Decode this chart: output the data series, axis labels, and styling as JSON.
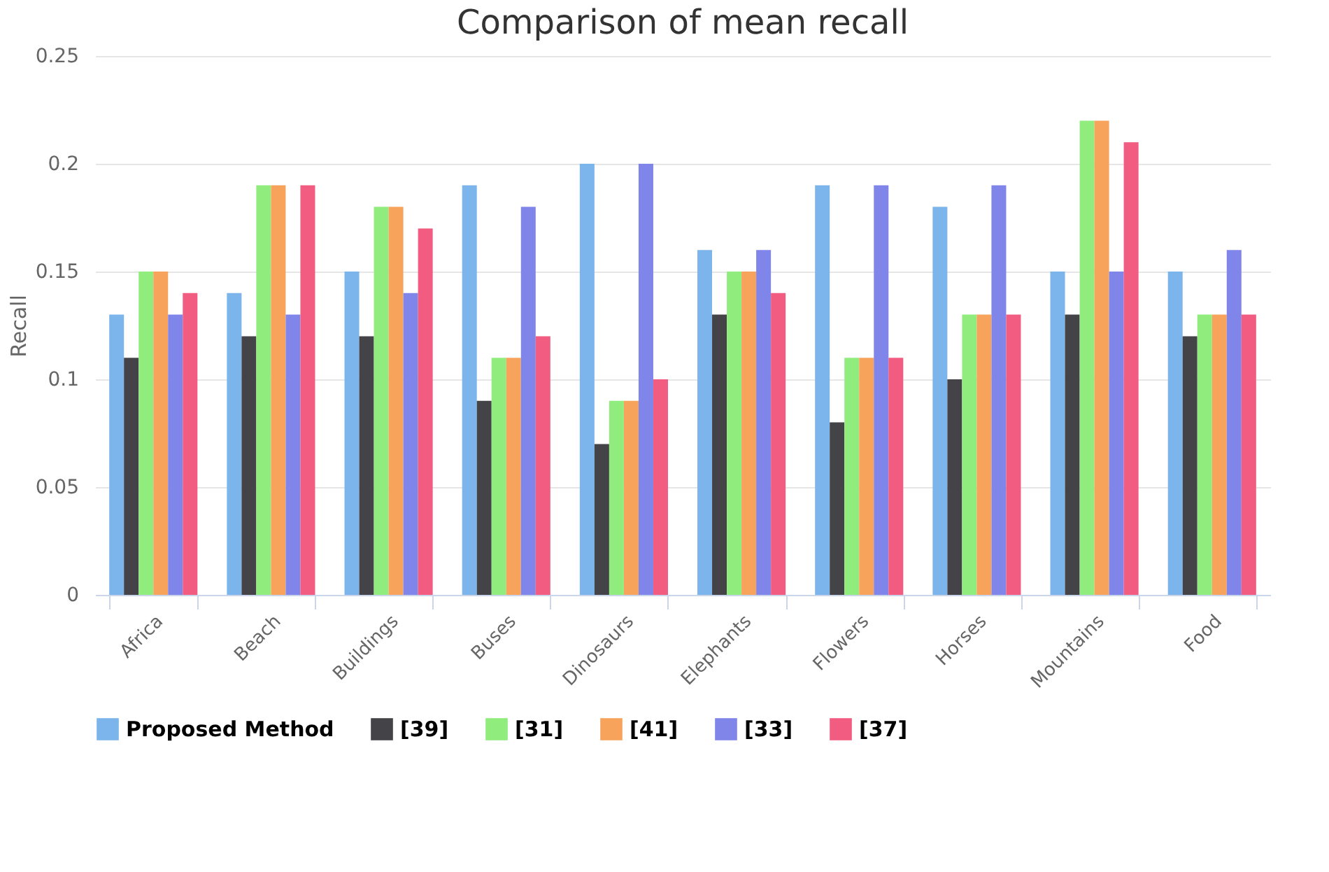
{
  "chart_data": {
    "type": "bar",
    "title": "Comparison of mean recall",
    "ylabel": "Recall",
    "categories": [
      "Africa",
      "Beach",
      "Buildings",
      "Buses",
      "Dinosaurs",
      "Elephants",
      "Flowers",
      "Horses",
      "Mountains",
      "Food"
    ],
    "series": [
      {
        "name": "Proposed Method",
        "color": "#7cb5ec",
        "values": [
          0.13,
          0.14,
          0.15,
          0.19,
          0.2,
          0.16,
          0.19,
          0.18,
          0.15,
          0.15
        ]
      },
      {
        "name": "[39]",
        "color": "#434348",
        "values": [
          0.11,
          0.12,
          0.12,
          0.09,
          0.07,
          0.13,
          0.08,
          0.1,
          0.13,
          0.12
        ]
      },
      {
        "name": "[31]",
        "color": "#90ed7d",
        "values": [
          0.15,
          0.19,
          0.18,
          0.11,
          0.09,
          0.15,
          0.11,
          0.13,
          0.22,
          0.13
        ]
      },
      {
        "name": "[41]",
        "color": "#f7a35c",
        "values": [
          0.15,
          0.19,
          0.18,
          0.11,
          0.09,
          0.15,
          0.11,
          0.13,
          0.22,
          0.13
        ]
      },
      {
        "name": "[33]",
        "color": "#8085e9",
        "values": [
          0.13,
          0.13,
          0.14,
          0.18,
          0.2,
          0.16,
          0.19,
          0.19,
          0.15,
          0.16
        ]
      },
      {
        "name": "[37]",
        "color": "#f15c80",
        "values": [
          0.14,
          0.19,
          0.17,
          0.12,
          0.1,
          0.14,
          0.11,
          0.13,
          0.21,
          0.13
        ]
      }
    ],
    "ylim": [
      0,
      0.25
    ],
    "yticks": [
      0,
      0.05,
      0.1,
      0.15,
      0.2,
      0.25
    ],
    "grid": "y",
    "legend": "bottom"
  }
}
